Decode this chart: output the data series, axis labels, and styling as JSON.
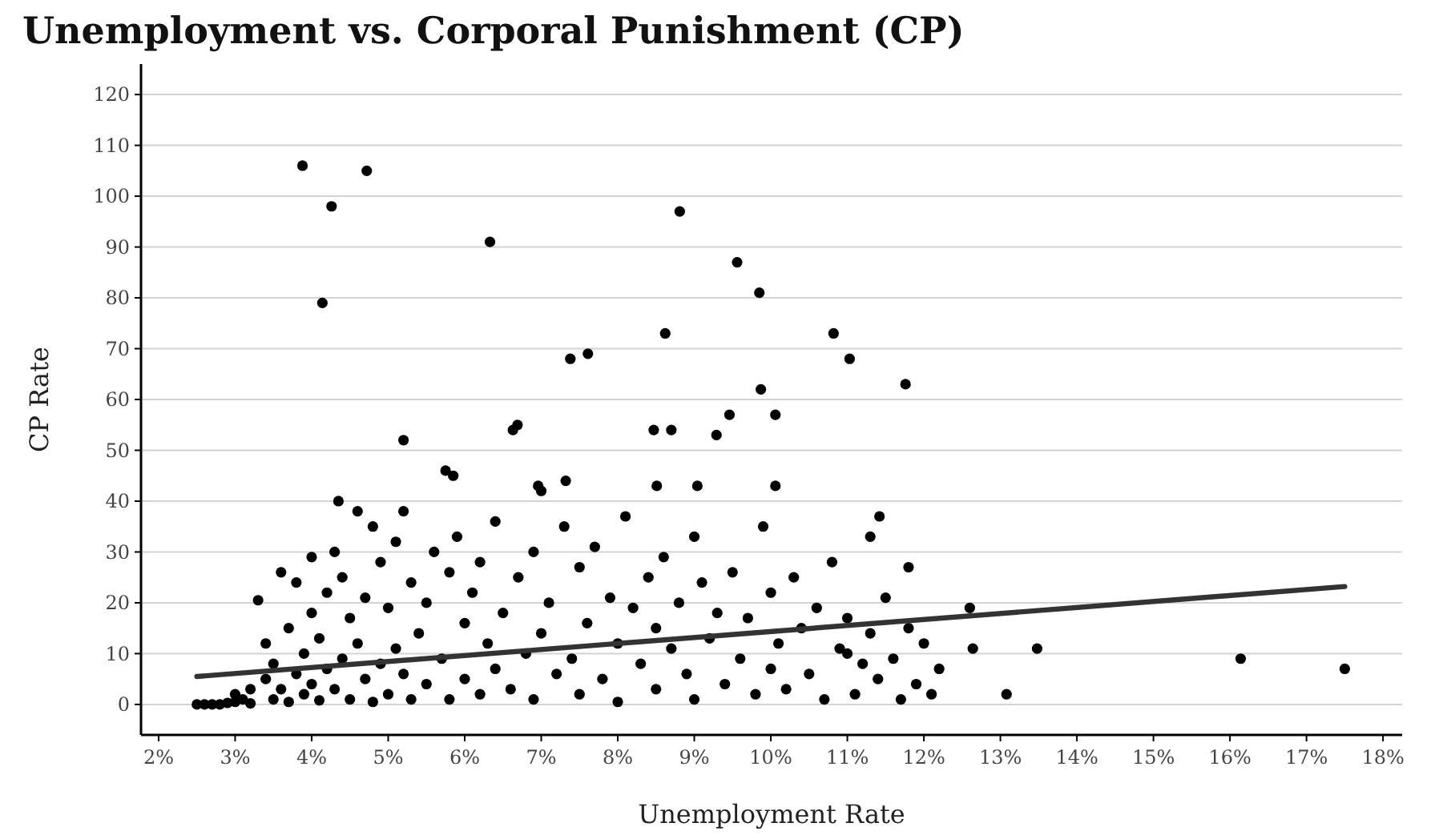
{
  "chart_data": {
    "type": "scatter",
    "title": "Unemployment vs. Corporal Punishment (CP)",
    "xlabel": "Unemployment Rate",
    "ylabel": "CP Rate",
    "xlim": [
      1.77,
      18.25
    ],
    "ylim": [
      -6,
      126
    ],
    "xticks": [
      {
        "value": 2,
        "label": "2%"
      },
      {
        "value": 3,
        "label": "3%"
      },
      {
        "value": 4,
        "label": "4%"
      },
      {
        "value": 5,
        "label": "5%"
      },
      {
        "value": 6,
        "label": "6%"
      },
      {
        "value": 7,
        "label": "7%"
      },
      {
        "value": 8,
        "label": "8%"
      },
      {
        "value": 9,
        "label": "9%"
      },
      {
        "value": 10,
        "label": "10%"
      },
      {
        "value": 11,
        "label": "11%"
      },
      {
        "value": 12,
        "label": "12%"
      },
      {
        "value": 13,
        "label": "13%"
      },
      {
        "value": 14,
        "label": "14%"
      },
      {
        "value": 15,
        "label": "15%"
      },
      {
        "value": 16,
        "label": "16%"
      },
      {
        "value": 17,
        "label": "17%"
      },
      {
        "value": 18,
        "label": "18%"
      }
    ],
    "yticks": [
      0,
      10,
      20,
      30,
      40,
      50,
      60,
      70,
      80,
      90,
      100,
      110,
      120
    ],
    "grid": "y",
    "series": [
      {
        "marker": "circle",
        "color": "#000000",
        "x": [
          3.88,
          4.26,
          4.72,
          4.14,
          6.33,
          8.81,
          9.56,
          9.85,
          9.87,
          10.06,
          9.46,
          9.29,
          8.47,
          8.7,
          8.62,
          10.82,
          11.03,
          11.76,
          7.38,
          7.61,
          6.63,
          6.69,
          5.2,
          5.75,
          5.85,
          4.35,
          8.51,
          9.04,
          6.96,
          7.32,
          10.06,
          11.42,
          11.3,
          11.8,
          12.6,
          12.64,
          13.48,
          13.08,
          16.14,
          17.5,
          2.5,
          2.6,
          2.7,
          2.8,
          2.9,
          3.0,
          3.1,
          3.2,
          3.0,
          3.2,
          3.3,
          3.4,
          3.4,
          3.5,
          3.5,
          3.6,
          3.6,
          3.7,
          3.7,
          3.8,
          3.8,
          3.9,
          3.9,
          4.0,
          4.0,
          4.0,
          4.1,
          4.1,
          4.2,
          4.2,
          4.3,
          4.3,
          4.4,
          4.4,
          4.5,
          4.5,
          4.6,
          4.6,
          4.7,
          4.7,
          4.8,
          4.8,
          4.9,
          4.9,
          5.0,
          5.0,
          5.1,
          5.1,
          5.2,
          5.2,
          5.3,
          5.3,
          5.4,
          5.5,
          5.5,
          5.6,
          5.7,
          5.8,
          5.8,
          5.9,
          6.0,
          6.0,
          6.1,
          6.2,
          6.2,
          6.3,
          6.4,
          6.4,
          6.5,
          6.6,
          6.7,
          6.8,
          6.9,
          6.9,
          7.0,
          7.0,
          7.1,
          7.2,
          7.3,
          7.4,
          7.5,
          7.5,
          7.6,
          7.7,
          7.8,
          7.9,
          8.0,
          8.0,
          8.1,
          8.2,
          8.3,
          8.4,
          8.5,
          8.5,
          8.6,
          8.7,
          8.8,
          8.9,
          9.0,
          9.0,
          9.1,
          9.2,
          9.3,
          9.4,
          9.5,
          9.6,
          9.7,
          9.8,
          9.9,
          10.0,
          10.0,
          10.1,
          10.2,
          10.3,
          10.4,
          10.5,
          10.6,
          10.7,
          10.8,
          10.9,
          11.0,
          11.1,
          11.2,
          11.3,
          11.4,
          11.5,
          11.6,
          11.7,
          11.8,
          11.9,
          12.0,
          12.2,
          11.0,
          12.1
        ],
        "values": [
          106,
          98,
          105,
          79,
          91,
          97,
          87,
          81,
          62,
          57,
          57,
          53,
          54,
          54,
          73,
          73,
          68,
          63,
          68,
          69,
          54,
          55,
          52,
          46,
          45,
          40,
          43,
          43,
          43,
          44,
          43,
          37,
          33,
          27,
          19,
          11,
          11,
          2,
          9,
          7,
          0,
          0,
          0,
          0,
          0.3,
          0.5,
          1,
          0.2,
          2,
          3,
          20.5,
          12,
          5,
          1,
          8,
          26,
          3,
          15,
          0.5,
          24,
          6,
          10,
          2,
          18,
          29,
          4,
          13,
          0.8,
          22,
          7,
          30,
          3,
          25,
          9,
          17,
          1,
          38,
          12,
          21,
          5,
          35,
          0.5,
          28,
          8,
          19,
          2,
          32,
          11,
          38,
          6,
          24,
          1,
          14,
          20,
          4,
          30,
          9,
          26,
          1,
          33,
          16,
          5,
          22,
          28,
          2,
          12,
          36,
          7,
          18,
          3,
          25,
          10,
          30,
          1,
          42,
          14,
          20,
          6,
          35,
          9,
          27,
          2,
          16,
          31,
          5,
          21,
          12,
          0.5,
          37,
          19,
          8,
          25,
          15,
          3,
          29,
          11,
          20,
          6,
          33,
          1,
          24,
          13,
          18,
          4,
          26,
          9,
          17,
          2,
          35,
          22,
          7,
          12,
          3,
          25,
          15,
          6,
          19,
          1,
          28,
          11,
          17,
          2,
          8,
          14,
          5,
          21,
          9,
          1,
          15,
          4,
          12,
          7,
          10,
          2
        ]
      },
      {
        "type": "line",
        "color": "#333333",
        "x": [
          2.5,
          17.5
        ],
        "values": [
          5.5,
          23.2
        ]
      }
    ]
  }
}
